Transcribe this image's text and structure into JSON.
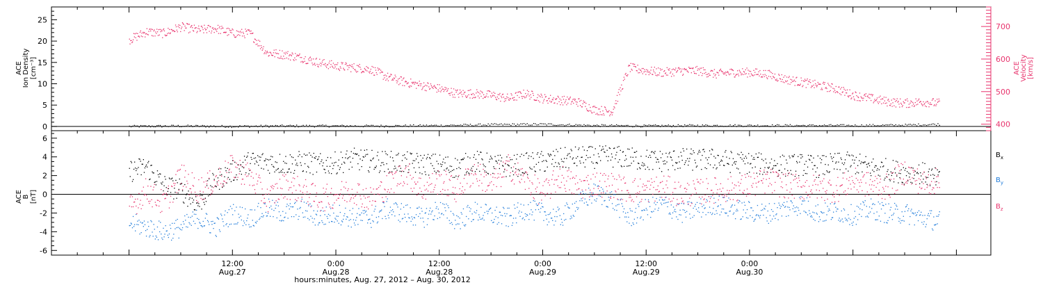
{
  "chart_data": [
    {
      "type": "scatter",
      "left_axis": {
        "title_lines": [
          "ACE",
          "Ion Density",
          "[cm⁻³]"
        ],
        "ylim": [
          -1,
          28
        ],
        "ticks": [
          0,
          5,
          10,
          15,
          20,
          25
        ],
        "tick_labels": [
          "0",
          "5",
          "10",
          "15",
          "20",
          "25"
        ]
      },
      "right_axis": {
        "title_lines": [
          "ACE",
          "Velocity",
          "[km/s]"
        ],
        "ylim": [
          380,
          760
        ],
        "ticks": [
          400,
          500,
          600,
          700
        ],
        "tick_labels": [
          "400",
          "500",
          "600",
          "700"
        ],
        "color": "#e8336d"
      },
      "series": [
        {
          "axis": "left",
          "color": "#000000",
          "x": [
            0,
            6,
            12,
            18,
            24,
            30,
            36,
            42,
            48,
            54,
            60,
            66,
            72,
            78,
            84,
            90,
            94
          ],
          "values": [
            0.1,
            0.2,
            0.1,
            0.2,
            0.2,
            0.2,
            0.3,
            0.5,
            0.6,
            0.3,
            0.2,
            0.3,
            0.3,
            0.3,
            0.3,
            0.4,
            0.6
          ]
        },
        {
          "axis": "right",
          "color": "#e8336d",
          "x": [
            0,
            2,
            4,
            6,
            8,
            10,
            12,
            14,
            16,
            18,
            20,
            22,
            24,
            26,
            28,
            30,
            32,
            34,
            36,
            38,
            40,
            42,
            44,
            46,
            48,
            50,
            52,
            54,
            56,
            58,
            60,
            62,
            64,
            66,
            68,
            70,
            72,
            74,
            76,
            78,
            80,
            82,
            84,
            86,
            88,
            90,
            92,
            94
          ],
          "values": [
            660,
            685,
            680,
            700,
            690,
            695,
            680,
            680,
            620,
            615,
            605,
            590,
            580,
            575,
            570,
            545,
            530,
            520,
            510,
            495,
            495,
            490,
            480,
            495,
            480,
            475,
            470,
            445,
            440,
            575,
            565,
            560,
            565,
            565,
            555,
            560,
            560,
            555,
            540,
            530,
            520,
            510,
            490,
            480,
            470,
            465,
            470,
            465
          ]
        }
      ]
    },
    {
      "type": "scatter",
      "axis": {
        "title_lines": [
          "ACE",
          "B",
          "[nT]"
        ],
        "ylim": [
          -6.5,
          6.8
        ],
        "ticks": [
          -6,
          -4,
          -2,
          0,
          2,
          4,
          6
        ],
        "tick_labels": [
          "-6",
          "-4",
          "-2",
          "0",
          "2",
          "4",
          "6"
        ]
      },
      "legend": [
        {
          "label": "B",
          "sub": "x",
          "color": "#000000"
        },
        {
          "label": "B",
          "sub": "y",
          "color": "#1e7bd9"
        },
        {
          "label": "B",
          "sub": "z",
          "color": "#e8336d"
        }
      ],
      "series": [
        {
          "color": "#000000",
          "x": [
            0,
            2,
            4,
            6,
            8,
            10,
            12,
            14,
            16,
            18,
            20,
            22,
            24,
            26,
            28,
            30,
            32,
            34,
            36,
            38,
            40,
            42,
            44,
            46,
            48,
            50,
            52,
            54,
            56,
            58,
            60,
            62,
            64,
            66,
            68,
            70,
            72,
            74,
            76,
            78,
            80,
            82,
            84,
            86,
            88,
            90,
            92,
            94
          ],
          "values": [
            2.5,
            3.0,
            1.0,
            0.5,
            -1.0,
            1.5,
            2.5,
            3.5,
            3.5,
            3.3,
            3.5,
            3.2,
            3.4,
            3.8,
            3.6,
            3.5,
            3.4,
            3.3,
            3.2,
            2.9,
            3.6,
            3.2,
            3.0,
            3.3,
            3.5,
            3.8,
            4.0,
            4.0,
            4.1,
            3.9,
            3.7,
            3.6,
            3.8,
            3.7,
            3.8,
            3.5,
            3.4,
            3.2,
            3.1,
            3.2,
            3.0,
            3.3,
            3.4,
            2.9,
            2.7,
            2.3,
            2.3,
            1.5
          ]
        },
        {
          "color": "#1e7bd9",
          "x": [
            0,
            2,
            4,
            6,
            8,
            10,
            12,
            14,
            16,
            18,
            20,
            22,
            24,
            26,
            28,
            30,
            32,
            34,
            36,
            38,
            40,
            42,
            44,
            46,
            48,
            50,
            52,
            54,
            56,
            58,
            60,
            62,
            64,
            66,
            68,
            70,
            72,
            74,
            76,
            78,
            80,
            82,
            84,
            86,
            88,
            90,
            92,
            94
          ],
          "values": [
            -3.0,
            -3.5,
            -4.0,
            -3.5,
            -2.5,
            -3.5,
            -2.0,
            -2.5,
            -1.5,
            -2.0,
            -1.5,
            -2.5,
            -2.0,
            -2.5,
            -2.5,
            -1.5,
            -2.0,
            -2.5,
            -1.5,
            -2.8,
            -1.8,
            -2.2,
            -2.5,
            -1.5,
            -2.0,
            -2.5,
            -1.0,
            0.2,
            -0.5,
            -2.5,
            -1.5,
            -1.0,
            -2.0,
            -1.5,
            -1.0,
            -1.5,
            -1.8,
            -2.0,
            -1.5,
            -1.0,
            -2.0,
            -1.8,
            -2.2,
            -1.5,
            -2.0,
            -2.0,
            -2.5,
            -2.8
          ]
        },
        {
          "color": "#e8336d",
          "x": [
            0,
            2,
            4,
            6,
            8,
            10,
            12,
            14,
            16,
            18,
            20,
            22,
            24,
            26,
            28,
            30,
            32,
            34,
            36,
            38,
            40,
            42,
            44,
            46,
            48,
            50,
            52,
            54,
            56,
            58,
            60,
            62,
            64,
            66,
            68,
            70,
            72,
            74,
            76,
            78,
            80,
            82,
            84,
            86,
            88,
            90,
            92,
            94
          ],
          "values": [
            -1.5,
            0.5,
            -1.0,
            2.0,
            0.5,
            1.5,
            3.0,
            2.0,
            -0.5,
            1.0,
            0.5,
            -0.5,
            0.0,
            0.5,
            -0.5,
            1.0,
            2.5,
            0.5,
            1.5,
            0.5,
            2.5,
            1.0,
            3.0,
            1.5,
            0.0,
            2.0,
            0.8,
            1.2,
            1.0,
            0.5,
            0.5,
            0.8,
            0.0,
            0.3,
            0.5,
            0.6,
            1.0,
            1.5,
            1.0,
            0.8,
            0.8,
            0.5,
            1.5,
            1.0,
            0.8,
            2.5,
            1.2,
            1.5
          ]
        }
      ]
    }
  ],
  "x_axis": {
    "range_hours": [
      -9,
      100
    ],
    "ticks": [
      {
        "hour": 12,
        "top": "12:00",
        "bottom": "Aug.27"
      },
      {
        "hour": 24,
        "top": "0:00",
        "bottom": "Aug.28"
      },
      {
        "hour": 36,
        "top": "12:00",
        "bottom": "Aug.28"
      },
      {
        "hour": 48,
        "top": "0:00",
        "bottom": "Aug.29"
      },
      {
        "hour": 60,
        "top": "12:00",
        "bottom": "Aug.29"
      },
      {
        "hour": 72,
        "top": "0:00",
        "bottom": "Aug.30"
      }
    ],
    "label": "hours:minutes, Aug. 27, 2012 – Aug. 30, 2012"
  }
}
